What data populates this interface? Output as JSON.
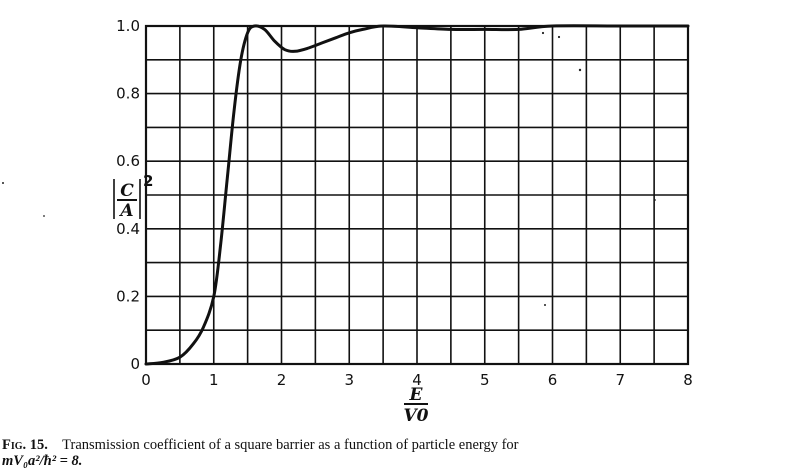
{
  "chart_data": {
    "type": "line",
    "title": "",
    "xlabel": "E / V0",
    "ylabel": "|C/A|^2",
    "xlim": [
      0,
      8
    ],
    "ylim": [
      0,
      1.0
    ],
    "grid": true,
    "x_ticks": [
      "0",
      "1",
      "2",
      "3",
      "4",
      "5",
      "6",
      "7",
      "8"
    ],
    "y_ticks": [
      "0",
      "0.2",
      "0.4",
      "0.6",
      "0.8",
      "1.0"
    ],
    "x_minor_step": 0.5,
    "y_minor_step": 0.1,
    "series": [
      {
        "name": "Transmission coefficient",
        "x": [
          0,
          0.25,
          0.5,
          0.7,
          0.85,
          1.0,
          1.1,
          1.2,
          1.3,
          1.4,
          1.5,
          1.6,
          1.75,
          1.9,
          2.05,
          2.2,
          2.4,
          2.6,
          2.8,
          3.0,
          3.2,
          3.5,
          4.0,
          4.5,
          5.0,
          5.5,
          6.0,
          7.0,
          8.0
        ],
        "values": [
          0.0,
          0.005,
          0.02,
          0.06,
          0.11,
          0.2,
          0.35,
          0.55,
          0.75,
          0.9,
          0.98,
          1.0,
          0.99,
          0.955,
          0.93,
          0.925,
          0.935,
          0.95,
          0.965,
          0.98,
          0.99,
          1.0,
          0.995,
          0.99,
          0.99,
          0.99,
          1.0,
          1.0,
          1.0
        ]
      }
    ]
  },
  "axes": {
    "y_label_numerator": "C",
    "y_label_denominator": "A",
    "y_label_exponent": "2",
    "x_label_numerator": "E",
    "x_label_denominator": "V0"
  },
  "caption": {
    "fig_label": "Fig. 15.",
    "text": "Transmission coefficient of a square barrier as a function of particle energy for",
    "equation": "mV₀a²/ħ² = 8."
  }
}
